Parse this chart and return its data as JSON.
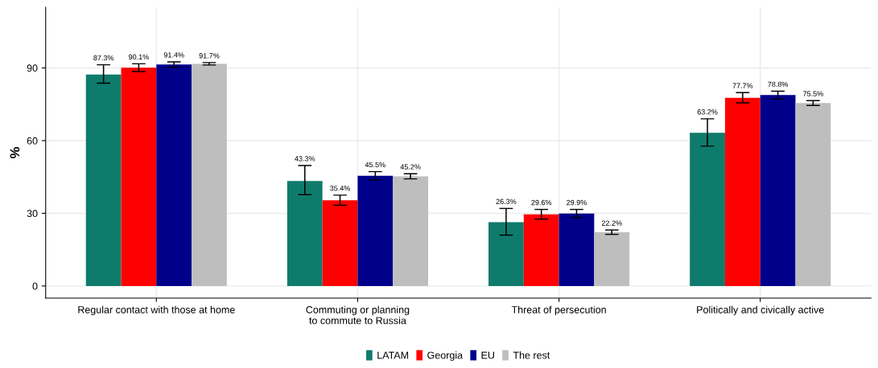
{
  "chart_data": {
    "type": "bar",
    "ylabel": "%",
    "categories": [
      "Regular contact with those at home",
      "Commuting or planning\nto commute to Russia",
      "Threat of persecution",
      "Politically and civically active"
    ],
    "series": [
      {
        "name": "LATAM",
        "color": "#0f7b6c",
        "values": [
          87.3,
          43.3,
          26.3,
          63.2
        ],
        "errors": [
          [
            83.7,
            91.3
          ],
          [
            37.7,
            49.7
          ],
          [
            21,
            32
          ],
          [
            57.7,
            69
          ]
        ],
        "value_labels": [
          "87.3%",
          "43.3%",
          "26.3%",
          "63.2%"
        ]
      },
      {
        "name": "Georgia",
        "color": "#ff0000",
        "values": [
          90.1,
          35.4,
          29.6,
          77.7
        ],
        "errors": [
          [
            88.5,
            91.7
          ],
          [
            33.3,
            37.5
          ],
          [
            27.6,
            31.6
          ],
          [
            75.6,
            79.8
          ]
        ],
        "value_labels": [
          "90.1%",
          "35.4%",
          "29.6%",
          "77.7%"
        ]
      },
      {
        "name": "EU",
        "color": "#00008b",
        "values": [
          91.4,
          45.5,
          29.9,
          78.8
        ],
        "errors": [
          [
            90.3,
            92.5
          ],
          [
            43.8,
            47.2
          ],
          [
            28.2,
            31.6
          ],
          [
            77.2,
            80.4
          ]
        ],
        "value_labels": [
          "91.4%",
          "45.5%",
          "29.9%",
          "78.8%"
        ]
      },
      {
        "name": "The rest",
        "color": "#bebebe",
        "values": [
          91.7,
          45.2,
          22.2,
          75.5
        ],
        "errors": [
          [
            91.2,
            92.2
          ],
          [
            44.2,
            46.3
          ],
          [
            21.3,
            23.1
          ],
          [
            74.5,
            76.5
          ]
        ],
        "value_labels": [
          "91.7%",
          "45.2%",
          "22.2%",
          "75.5%"
        ]
      }
    ],
    "ylim": [
      -5,
      115
    ],
    "yticks": [
      0,
      30,
      60,
      90
    ],
    "grid": true,
    "legend": "bottom"
  }
}
